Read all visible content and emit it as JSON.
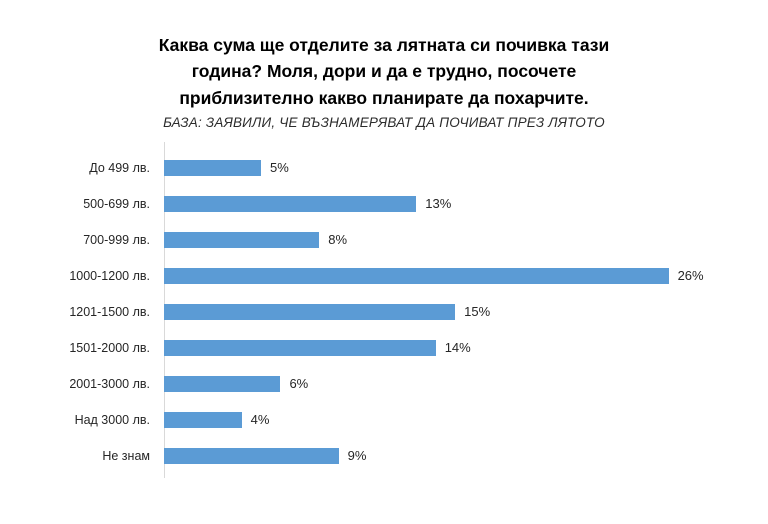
{
  "title_lines": [
    "Каква сума ще отделите за лятната си почивка тази",
    "година? Моля, дори и да е трудно, посочете",
    "приблизително какво планирате да похарчите."
  ],
  "subtitle": "БАЗА: ЗАЯВИЛИ, ЧЕ ВЪЗНАМЕРЯВАТ ДА ПОЧИВАТ ПРЕЗ ЛЯТОТО",
  "chart_data": {
    "type": "bar",
    "orientation": "horizontal",
    "title": "Каква сума ще отделите за лятната си почивка тази година? Моля, дори и да е трудно, посочете приблизително какво планирате да похарчите.",
    "subtitle": "БАЗА: ЗАЯВИЛИ, ЧЕ ВЪЗНАМЕРЯВАТ ДА ПОЧИВАТ ПРЕЗ ЛЯТОТО",
    "categories": [
      "До 499 лв.",
      "500-699 лв.",
      "700-999 лв.",
      "1000-1200 лв.",
      "1201-1500 лв.",
      "1501-2000 лв.",
      "2001-3000 лв.",
      "Над 3000 лв.",
      "Не знам"
    ],
    "values": [
      5,
      13,
      8,
      26,
      15,
      14,
      6,
      4,
      9
    ],
    "value_labels": [
      "5%",
      "13%",
      "8%",
      "26%",
      "15%",
      "14%",
      "6%",
      "4%",
      "9%"
    ],
    "xlabel": "",
    "ylabel": "",
    "xlim": [
      0,
      27
    ],
    "grid": false,
    "legend": false,
    "bar_color": "#5B9BD5",
    "axis_line_color": "#D9D9D9"
  }
}
